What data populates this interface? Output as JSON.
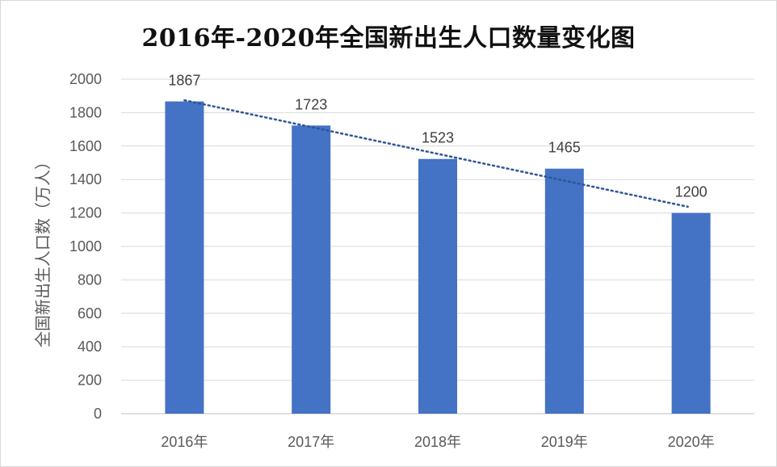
{
  "chart_data": {
    "type": "bar",
    "title": "2016年-2020年全国新出生人口数量变化图",
    "xlabel": "",
    "ylabel": "全国新出生人口数（万人）",
    "categories": [
      "2016年",
      "2017年",
      "2018年",
      "2019年",
      "2020年"
    ],
    "values": [
      1867,
      1723,
      1523,
      1465,
      1200
    ],
    "ylim": [
      0,
      2000
    ],
    "yticks": [
      0,
      200,
      400,
      600,
      800,
      1000,
      1200,
      1400,
      1600,
      1800,
      2000
    ],
    "grid": true,
    "trendline": "linear, dotted",
    "data_labels": true,
    "bar_color": "#4472C4",
    "trend_color": "#2F5597"
  }
}
